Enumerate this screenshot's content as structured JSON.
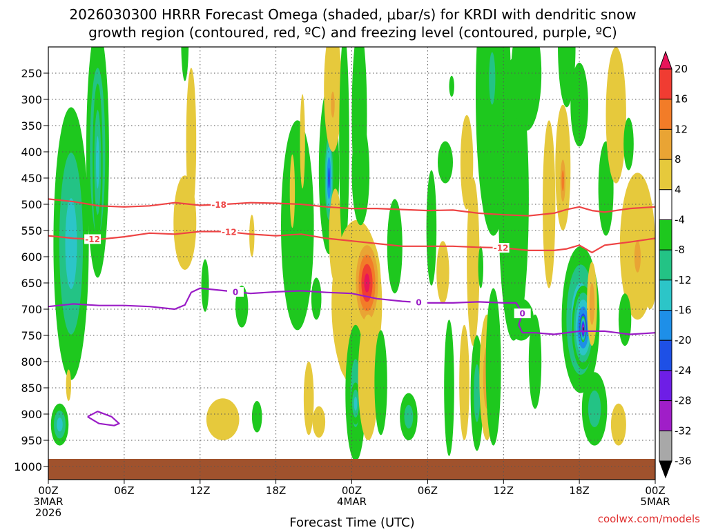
{
  "chart_data": {
    "type": "heatmap",
    "title_line1": "2026030300 HRRR Forecast Omega (shaded, μbar/s) for KRDI with dendritic snow",
    "title_line2": "growth region (contoured, red, ºC) and freezing level (contoured, purple, ºC)",
    "xlabel": "Forecast Time (UTC)",
    "credit": "coolwx.com/models",
    "x_ticks": [
      {
        "h": 0,
        "label": "00Z",
        "sub1": "3MAR",
        "sub2": "2026"
      },
      {
        "h": 6,
        "label": "06Z"
      },
      {
        "h": 12,
        "label": "12Z"
      },
      {
        "h": 18,
        "label": "18Z"
      },
      {
        "h": 24,
        "label": "00Z",
        "sub1": "4MAR"
      },
      {
        "h": 30,
        "label": "06Z"
      },
      {
        "h": 36,
        "label": "12Z"
      },
      {
        "h": 42,
        "label": "18Z"
      },
      {
        "h": 48,
        "label": "00Z",
        "sub1": "5MAR"
      }
    ],
    "y_ticks": [
      250,
      300,
      350,
      400,
      450,
      500,
      550,
      600,
      650,
      700,
      750,
      800,
      850,
      900,
      950,
      1000
    ],
    "x_range_hours": [
      0,
      48
    ],
    "y_range_hpa": [
      200,
      1025
    ],
    "ground_hpa": 965,
    "colorbar": {
      "labels": [
        "20",
        "16",
        "12",
        "8",
        "4",
        "-4",
        "-8",
        "-12",
        "-16",
        "-20",
        "-24",
        "-28",
        "-32",
        "-36"
      ],
      "bins": [
        {
          "color": "#e8145a",
          "lo": 20,
          "hi": 24
        },
        {
          "color": "#f03c32",
          "lo": 16,
          "hi": 20
        },
        {
          "color": "#f27c28",
          "lo": 12,
          "hi": 16
        },
        {
          "color": "#e9a434",
          "lo": 8,
          "hi": 12
        },
        {
          "color": "#e6c93c",
          "lo": 4,
          "hi": 8
        },
        {
          "color": "#ffffff",
          "lo": -4,
          "hi": 4
        },
        {
          "color": "#1ec81e",
          "lo": -8,
          "hi": -4
        },
        {
          "color": "#23c385",
          "lo": -12,
          "hi": -8
        },
        {
          "color": "#2cc5c8",
          "lo": -16,
          "hi": -12
        },
        {
          "color": "#1e8fe8",
          "lo": -20,
          "hi": -16
        },
        {
          "color": "#1e50e6",
          "lo": -24,
          "hi": -20
        },
        {
          "color": "#6e1ee6",
          "lo": -28,
          "hi": -24
        },
        {
          "color": "#a01ec8",
          "lo": -32,
          "hi": -28
        },
        {
          "color": "#a8a8a8",
          "lo": -36,
          "hi": -32
        },
        {
          "color": "#000000",
          "lo": -40,
          "hi": -36
        }
      ]
    },
    "omega_features": [
      {
        "t": 0.9,
        "p": 920,
        "dt": 0.7,
        "dp": 40,
        "v": -12
      },
      {
        "t": 1.8,
        "p": 575,
        "dt": 1.4,
        "dp": 260,
        "v": -13
      },
      {
        "t": 1.6,
        "p": 845,
        "dt": 0.2,
        "dp": 30,
        "v": 5
      },
      {
        "t": 3.9,
        "p": 400,
        "dt": 0.9,
        "dp": 240,
        "v": -12
      },
      {
        "t": 3.9,
        "p": 420,
        "dt": 0.4,
        "dp": 150,
        "v": -15
      },
      {
        "t": 10.8,
        "p": 185,
        "dt": 0.3,
        "dp": 80,
        "v": -6
      },
      {
        "t": 11.3,
        "p": 380,
        "dt": 0.4,
        "dp": 140,
        "v": 5
      },
      {
        "t": 10.8,
        "p": 535,
        "dt": 0.9,
        "dp": 90,
        "v": 5
      },
      {
        "t": 12.4,
        "p": 655,
        "dt": 0.3,
        "dp": 50,
        "v": -6
      },
      {
        "t": 13.8,
        "p": 910,
        "dt": 1.3,
        "dp": 40,
        "v": 6
      },
      {
        "t": 15.3,
        "p": 695,
        "dt": 0.5,
        "dp": 40,
        "v": -6
      },
      {
        "t": 16.5,
        "p": 905,
        "dt": 0.4,
        "dp": 30,
        "v": -6
      },
      {
        "t": 16.1,
        "p": 560,
        "dt": 0.2,
        "dp": 40,
        "v": 5
      },
      {
        "t": 19.7,
        "p": 540,
        "dt": 1.3,
        "dp": 200,
        "v": -7
      },
      {
        "t": 19.3,
        "p": 475,
        "dt": 0.2,
        "dp": 70,
        "v": 5
      },
      {
        "t": 20.1,
        "p": 380,
        "dt": 0.2,
        "dp": 90,
        "v": 5
      },
      {
        "t": 20.6,
        "p": 870,
        "dt": 0.4,
        "dp": 70,
        "v": 6
      },
      {
        "t": 21.4,
        "p": 915,
        "dt": 0.5,
        "dp": 30,
        "v": 6
      },
      {
        "t": 21.2,
        "p": 680,
        "dt": 0.4,
        "dp": 40,
        "v": -6
      },
      {
        "t": 22.2,
        "p": 435,
        "dt": 0.8,
        "dp": 160,
        "v": -11
      },
      {
        "t": 22.2,
        "p": 450,
        "dt": 0.4,
        "dp": 100,
        "v": -22
      },
      {
        "t": 22.7,
        "p": 560,
        "dt": 0.5,
        "dp": 90,
        "v": 6
      },
      {
        "t": 22.5,
        "p": 280,
        "dt": 0.7,
        "dp": 120,
        "v": 6
      },
      {
        "t": 22.5,
        "p": 310,
        "dt": 0.3,
        "dp": 50,
        "v": 10
      },
      {
        "t": 23.4,
        "p": 385,
        "dt": 0.4,
        "dp": 210,
        "v": -6
      },
      {
        "t": 23.6,
        "p": 730,
        "dt": 0.9,
        "dp": 100,
        "v": 14
      },
      {
        "t": 24.4,
        "p": 690,
        "dt": 2.0,
        "dp": 160,
        "v": 7
      },
      {
        "t": 25.2,
        "p": 650,
        "dt": 1.1,
        "dp": 90,
        "v": 21
      },
      {
        "t": 24.3,
        "p": 860,
        "dt": 0.8,
        "dp": 130,
        "v": -10
      },
      {
        "t": 24.3,
        "p": 880,
        "dt": 0.4,
        "dp": 40,
        "v": -15
      },
      {
        "t": 25.3,
        "p": 830,
        "dt": 0.8,
        "dp": 120,
        "v": 6
      },
      {
        "t": 24.6,
        "p": 330,
        "dt": 0.6,
        "dp": 170,
        "v": -6
      },
      {
        "t": 24.7,
        "p": 440,
        "dt": 0.7,
        "dp": 100,
        "v": -7
      },
      {
        "t": 26.3,
        "p": 840,
        "dt": 0.5,
        "dp": 100,
        "v": -6
      },
      {
        "t": 27.4,
        "p": 580,
        "dt": 0.6,
        "dp": 90,
        "v": -6
      },
      {
        "t": 28.5,
        "p": 905,
        "dt": 0.7,
        "dp": 45,
        "v": -11
      },
      {
        "t": 30.3,
        "p": 545,
        "dt": 0.4,
        "dp": 110,
        "v": -6
      },
      {
        "t": 31.2,
        "p": 630,
        "dt": 0.5,
        "dp": 60,
        "v": 6
      },
      {
        "t": 31.4,
        "p": 420,
        "dt": 0.6,
        "dp": 40,
        "v": -6
      },
      {
        "t": 31.9,
        "p": 275,
        "dt": 0.2,
        "dp": 20,
        "v": -6
      },
      {
        "t": 31.7,
        "p": 850,
        "dt": 0.4,
        "dp": 130,
        "v": -7
      },
      {
        "t": 32.9,
        "p": 840,
        "dt": 0.4,
        "dp": 110,
        "v": 6
      },
      {
        "t": 33.1,
        "p": 420,
        "dt": 0.5,
        "dp": 90,
        "v": 5
      },
      {
        "t": 33.6,
        "p": 610,
        "dt": 0.5,
        "dp": 160,
        "v": 6
      },
      {
        "t": 33.9,
        "p": 860,
        "dt": 0.5,
        "dp": 110,
        "v": -9
      },
      {
        "t": 34.2,
        "p": 620,
        "dt": 0.2,
        "dp": 40,
        "v": -6
      },
      {
        "t": 34.7,
        "p": 830,
        "dt": 0.6,
        "dp": 120,
        "v": 8
      },
      {
        "t": 35.2,
        "p": 290,
        "dt": 1.4,
        "dp": 270,
        "v": -7
      },
      {
        "t": 35.1,
        "p": 260,
        "dt": 0.5,
        "dp": 100,
        "v": -11
      },
      {
        "t": 35.2,
        "p": 810,
        "dt": 0.6,
        "dp": 150,
        "v": -6
      },
      {
        "t": 36.8,
        "p": 490,
        "dt": 1.2,
        "dp": 270,
        "v": -6
      },
      {
        "t": 37.8,
        "p": 250,
        "dt": 1.2,
        "dp": 110,
        "v": -6
      },
      {
        "t": 37.4,
        "p": 720,
        "dt": 1.0,
        "dp": 40,
        "v": -6
      },
      {
        "t": 38.5,
        "p": 800,
        "dt": 0.5,
        "dp": 90,
        "v": -6
      },
      {
        "t": 39.6,
        "p": 500,
        "dt": 0.5,
        "dp": 160,
        "v": 6
      },
      {
        "t": 40.7,
        "p": 430,
        "dt": 0.6,
        "dp": 120,
        "v": 6
      },
      {
        "t": 40.7,
        "p": 455,
        "dt": 0.3,
        "dp": 60,
        "v": 12
      },
      {
        "t": 41.0,
        "p": 195,
        "dt": 0.7,
        "dp": 120,
        "v": -6
      },
      {
        "t": 42.0,
        "p": 310,
        "dt": 0.7,
        "dp": 80,
        "v": -6
      },
      {
        "t": 42.1,
        "p": 720,
        "dt": 1.5,
        "dp": 140,
        "v": -18
      },
      {
        "t": 42.3,
        "p": 735,
        "dt": 0.9,
        "dp": 80,
        "v": -26
      },
      {
        "t": 42.3,
        "p": 738,
        "dt": 0.22,
        "dp": 25,
        "v": -38
      },
      {
        "t": 43.2,
        "p": 890,
        "dt": 1.0,
        "dp": 70,
        "v": -10
      },
      {
        "t": 43.0,
        "p": 690,
        "dt": 0.4,
        "dp": 80,
        "v": 8
      },
      {
        "t": 44.1,
        "p": 470,
        "dt": 0.6,
        "dp": 90,
        "v": -6
      },
      {
        "t": 44.9,
        "p": 330,
        "dt": 0.8,
        "dp": 130,
        "v": 6
      },
      {
        "t": 45.9,
        "p": 385,
        "dt": 0.4,
        "dp": 50,
        "v": -6
      },
      {
        "t": 45.1,
        "p": 920,
        "dt": 0.6,
        "dp": 40,
        "v": 5
      },
      {
        "t": 46.6,
        "p": 580,
        "dt": 1.4,
        "dp": 140,
        "v": 6
      },
      {
        "t": 46.6,
        "p": 600,
        "dt": 0.5,
        "dp": 60,
        "v": 10
      },
      {
        "t": 45.6,
        "p": 720,
        "dt": 0.5,
        "dp": 50,
        "v": -6
      },
      {
        "t": 47.6,
        "p": 640,
        "dt": 0.5,
        "dp": 60,
        "v": 6
      }
    ],
    "contours": [
      {
        "name": "dgz-minus18",
        "color": "#ee4444",
        "label": "-18",
        "label_t": [
          13.5
        ],
        "label_p": 500,
        "t": [
          0,
          2,
          4,
          6,
          8,
          10,
          12,
          14,
          16,
          18,
          20,
          22,
          24,
          26,
          28,
          30,
          32,
          34,
          36,
          38,
          40,
          41,
          42,
          43,
          44,
          46,
          48
        ],
        "p": [
          490,
          495,
          503,
          505,
          503,
          497,
          502,
          500,
          497,
          498,
          500,
          505,
          508,
          508,
          510,
          512,
          511,
          517,
          520,
          522,
          517,
          510,
          505,
          512,
          515,
          508,
          505
        ]
      },
      {
        "name": "dgz-minus12",
        "color": "#ee4444",
        "label": "-12",
        "label_t": [
          3.5,
          14.3,
          35.8
        ],
        "label_p": 560,
        "t": [
          0,
          2,
          4,
          6,
          8,
          10,
          12,
          14,
          16,
          18,
          20,
          22,
          24,
          26,
          28,
          30,
          32,
          34,
          36,
          38,
          40,
          41,
          42,
          43,
          44,
          46,
          48
        ],
        "p": [
          560,
          565,
          567,
          562,
          555,
          557,
          552,
          552,
          557,
          560,
          557,
          565,
          570,
          575,
          580,
          580,
          580,
          582,
          583,
          588,
          588,
          585,
          578,
          592,
          578,
          572,
          565
        ]
      },
      {
        "name": "freezing-level",
        "color": "#9a1cc6",
        "label": "0",
        "label_t": [
          14.8,
          29.3,
          37.5
        ],
        "label_p": 688,
        "t": [
          0,
          2,
          4,
          6,
          8,
          10,
          10.8,
          11.3,
          12,
          14,
          16,
          18,
          20,
          22,
          24,
          26,
          28,
          30,
          32,
          34,
          36,
          37,
          37.5,
          37.2,
          37.5,
          38.5,
          40,
          42,
          44,
          46,
          48
        ],
        "p": [
          695,
          690,
          693,
          693,
          695,
          700,
          692,
          668,
          660,
          665,
          670,
          667,
          665,
          668,
          670,
          680,
          685,
          688,
          688,
          686,
          688,
          688,
          708,
          730,
          745,
          745,
          748,
          742,
          742,
          748,
          745
        ]
      }
    ],
    "closed_contours": [
      {
        "name": "freezing-level-loop",
        "color": "#9a1cc6",
        "t": [
          3.1,
          3.9,
          5.0,
          5.6,
          5.2,
          4.0,
          3.1
        ],
        "p": [
          905,
          895,
          905,
          918,
          922,
          918,
          905
        ]
      }
    ]
  }
}
